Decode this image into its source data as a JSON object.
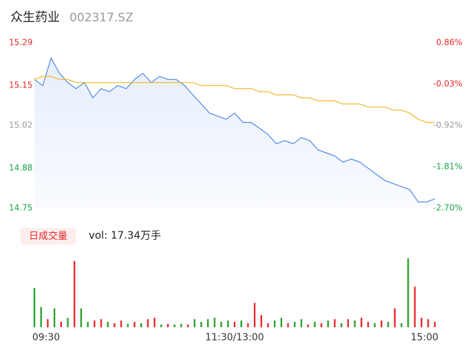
{
  "chart_data": [
    {
      "type": "line",
      "title": "众生药业",
      "subtitle": "002317.SZ",
      "x": [
        0,
        5,
        10,
        15,
        20,
        25,
        30,
        35,
        40,
        45,
        50,
        55,
        60,
        65,
        70,
        75,
        80,
        85,
        90,
        95,
        100,
        105,
        110,
        115,
        120,
        125,
        130,
        135,
        140,
        145,
        150,
        155,
        160,
        165,
        170,
        175,
        180,
        185,
        190,
        195,
        200,
        205,
        210,
        215,
        220,
        225,
        230,
        235,
        240
      ],
      "series": [
        {
          "name": "price",
          "color": "#4a86e8",
          "values": [
            15.17,
            15.15,
            15.24,
            15.19,
            15.16,
            15.14,
            15.16,
            15.11,
            15.14,
            15.13,
            15.15,
            15.14,
            15.17,
            15.19,
            15.16,
            15.18,
            15.17,
            15.17,
            15.15,
            15.12,
            15.09,
            15.06,
            15.05,
            15.04,
            15.06,
            15.03,
            15.03,
            15.01,
            14.99,
            14.96,
            14.97,
            14.96,
            14.98,
            14.97,
            14.94,
            14.93,
            14.92,
            14.9,
            14.91,
            14.9,
            14.88,
            14.86,
            14.84,
            14.83,
            14.82,
            14.81,
            14.77,
            14.77,
            14.78
          ]
        },
        {
          "name": "average",
          "color": "#f5b324",
          "values": [
            15.17,
            15.18,
            15.18,
            15.17,
            15.17,
            15.16,
            15.16,
            15.16,
            15.16,
            15.16,
            15.16,
            15.16,
            15.16,
            15.16,
            15.16,
            15.16,
            15.16,
            15.16,
            15.16,
            15.16,
            15.15,
            15.15,
            15.15,
            15.15,
            15.14,
            15.14,
            15.14,
            15.13,
            15.13,
            15.12,
            15.12,
            15.12,
            15.11,
            15.11,
            15.1,
            15.1,
            15.1,
            15.09,
            15.09,
            15.09,
            15.08,
            15.08,
            15.08,
            15.07,
            15.07,
            15.06,
            15.04,
            15.03,
            15.03
          ]
        }
      ],
      "xlim": [
        0,
        240
      ],
      "ylim": [
        14.75,
        15.29
      ],
      "yticks": [
        15.29,
        15.15,
        15.02,
        14.88,
        14.75
      ],
      "y2lim": [
        -2.7,
        0.86
      ],
      "y2ticks": [
        {
          "value": 0.86,
          "label": "0.86%"
        },
        {
          "value": -0.03,
          "label": "-0.03%"
        },
        {
          "value": -0.92,
          "label": "-0.92%"
        },
        {
          "value": -1.81,
          "label": "-1.81%"
        },
        {
          "value": -2.7,
          "label": "-2.70%"
        }
      ],
      "tick_colors": [
        "#e8282b",
        "#e8282b",
        "#999999",
        "#17a34a",
        "#17a34a"
      ]
    },
    {
      "type": "bar",
      "label": "日成交量",
      "annotation": "vol: 17.34万手",
      "x": [
        0,
        4,
        8,
        12,
        16,
        20,
        24,
        28,
        32,
        36,
        40,
        44,
        48,
        52,
        56,
        60,
        64,
        68,
        72,
        76,
        80,
        84,
        88,
        92,
        96,
        100,
        104,
        108,
        112,
        116,
        120,
        124,
        128,
        132,
        136,
        140,
        144,
        148,
        152,
        156,
        160,
        164,
        168,
        172,
        176,
        180,
        184,
        188,
        192,
        196,
        200,
        204,
        208,
        212,
        216,
        220,
        224,
        228,
        232,
        236,
        240
      ],
      "values": [
        58,
        30,
        12,
        28,
        8,
        14,
        98,
        28,
        8,
        10,
        12,
        8,
        6,
        10,
        5,
        8,
        6,
        12,
        14,
        4,
        5,
        4,
        5,
        4,
        12,
        8,
        12,
        14,
        8,
        10,
        8,
        10,
        6,
        36,
        18,
        6,
        10,
        14,
        6,
        8,
        12,
        4,
        8,
        6,
        10,
        12,
        6,
        12,
        10,
        14,
        8,
        6,
        10,
        8,
        28,
        6,
        102,
        60,
        14,
        12,
        8
      ],
      "colors": [
        "#2ca02c",
        "#2ca02c",
        "#e8282b",
        "#2ca02c",
        "#e8282b",
        "#2ca02c",
        "#e8282b",
        "#2ca02c",
        "#2ca02c",
        "#e8282b",
        "#e8282b",
        "#2ca02c",
        "#e8282b",
        "#e8282b",
        "#2ca02c",
        "#e8282b",
        "#2ca02c",
        "#e8282b",
        "#e8282b",
        "#2ca02c",
        "#e8282b",
        "#2ca02c",
        "#2ca02c",
        "#e8282b",
        "#2ca02c",
        "#2ca02c",
        "#2ca02c",
        "#2ca02c",
        "#2ca02c",
        "#2ca02c",
        "#e8282b",
        "#2ca02c",
        "#e8282b",
        "#e8282b",
        "#e8282b",
        "#e8282b",
        "#2ca02c",
        "#2ca02c",
        "#e8282b",
        "#2ca02c",
        "#2ca02c",
        "#e8282b",
        "#2ca02c",
        "#e8282b",
        "#2ca02c",
        "#e8282b",
        "#2ca02c",
        "#e8282b",
        "#2ca02c",
        "#e8282b",
        "#e8282b",
        "#2ca02c",
        "#e8282b",
        "#2ca02c",
        "#e8282b",
        "#2ca02c",
        "#2ca02c",
        "#e8282b",
        "#e8282b",
        "#e8282b",
        "#e8282b"
      ],
      "xlim": [
        0,
        240
      ],
      "ylim": [
        0,
        105
      ],
      "xticks": [
        {
          "value": 0,
          "label": "09:30"
        },
        {
          "value": 120,
          "label": "11:30/13:00"
        },
        {
          "value": 240,
          "label": "15:00"
        }
      ]
    }
  ]
}
